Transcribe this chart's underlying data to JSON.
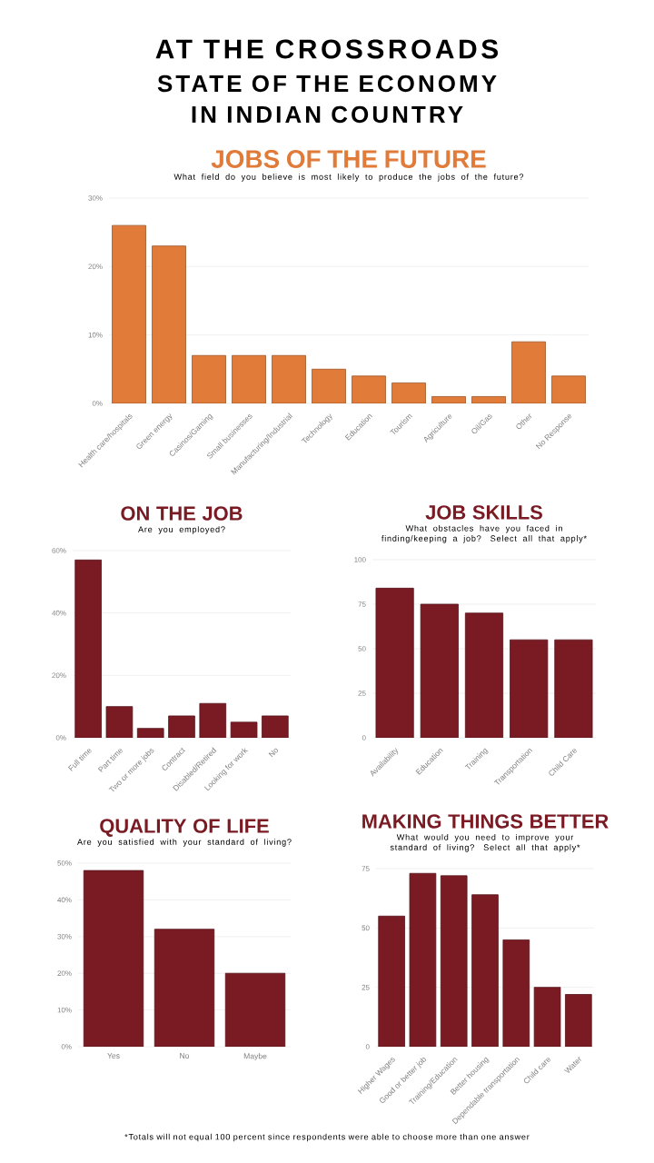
{
  "chart_data": [
    {
      "type": "bar",
      "title": "JOBS OF THE FUTURE",
      "subtitle": "What field do you believe is most likely to produce the jobs of the future?",
      "annotations": [
        "AT THE CROSSROADS",
        "STATE OF THE ECONOMY",
        "IN INDIAN COUNTRY"
      ],
      "categories": [
        "Health care/hospitals",
        "Green energy",
        "Casinos/Gaming",
        "Small businesses",
        "Manufacturing/Industrial",
        "Technology",
        "Education",
        "Tourism",
        "Agriculture",
        "Oil/Gas",
        "Other",
        "No Response"
      ],
      "values": [
        26,
        23,
        7,
        7,
        7,
        5,
        4,
        3,
        1,
        1,
        9,
        4
      ],
      "color": "#e07b39",
      "ylim": [
        0,
        30
      ],
      "yticks": [
        {
          "value": 0,
          "label": "0%"
        },
        {
          "value": 10,
          "label": "10%"
        },
        {
          "value": 20,
          "label": "20%"
        },
        {
          "value": 30,
          "label": "30%"
        }
      ],
      "grid": "y"
    },
    {
      "type": "bar",
      "title": "ON THE JOB",
      "subtitle": "Are you employed?",
      "categories": [
        "Full time",
        "Part time",
        "Two or more jobs",
        "Contract",
        "Disabled/Retired",
        "Looking for work",
        "No"
      ],
      "values": [
        57,
        10,
        3,
        7,
        11,
        5,
        7
      ],
      "color": "#7a1b24",
      "ylim": [
        0,
        60
      ],
      "yticks": [
        {
          "value": 0,
          "label": "0%"
        },
        {
          "value": 20,
          "label": "20%"
        },
        {
          "value": 40,
          "label": "40%"
        },
        {
          "value": 60,
          "label": "60%"
        }
      ],
      "grid": "y"
    },
    {
      "type": "bar",
      "title": "JOB SKILLS",
      "subtitle": "What obstacles have you faced in finding/keeping a job? Select all that apply*",
      "categories": [
        "Availability",
        "Education",
        "Training",
        "Transportation",
        "Child Care"
      ],
      "values": [
        84,
        75,
        70,
        55,
        55
      ],
      "color": "#7a1b24",
      "ylim": [
        0,
        100
      ],
      "yticks": [
        0,
        25,
        50,
        75,
        100
      ],
      "grid": "y"
    },
    {
      "type": "bar",
      "title": "QUALITY OF LIFE",
      "subtitle": "Are you satisfied with your standard of living?",
      "categories": [
        "Yes",
        "No",
        "Maybe"
      ],
      "values": [
        48,
        32,
        20
      ],
      "color": "#7a1b24",
      "ylim": [
        0,
        50
      ],
      "yticks": [
        {
          "value": 0,
          "label": "0%"
        },
        {
          "value": 10,
          "label": "10%"
        },
        {
          "value": 20,
          "label": "20%"
        },
        {
          "value": 30,
          "label": "30%"
        },
        {
          "value": 40,
          "label": "40%"
        },
        {
          "value": 50,
          "label": "50%"
        }
      ],
      "grid": "y"
    },
    {
      "type": "bar",
      "title": "MAKING THINGS BETTER",
      "subtitle": "What would you need to improve your standard of living? Select all that apply*",
      "annotations": [
        "*Totals will not equal 100 percent since respondents were able to choose more than one answer"
      ],
      "categories": [
        "Higher Wages",
        "Good or better job",
        "Training/Education",
        "Better housing",
        "Dependable transportation",
        "Child care",
        "Water"
      ],
      "values": [
        55,
        73,
        72,
        64,
        45,
        25,
        22
      ],
      "color": "#7a1b24",
      "ylim": [
        0,
        75
      ],
      "yticks": [
        0,
        25,
        50,
        75
      ],
      "grid": "y"
    }
  ]
}
